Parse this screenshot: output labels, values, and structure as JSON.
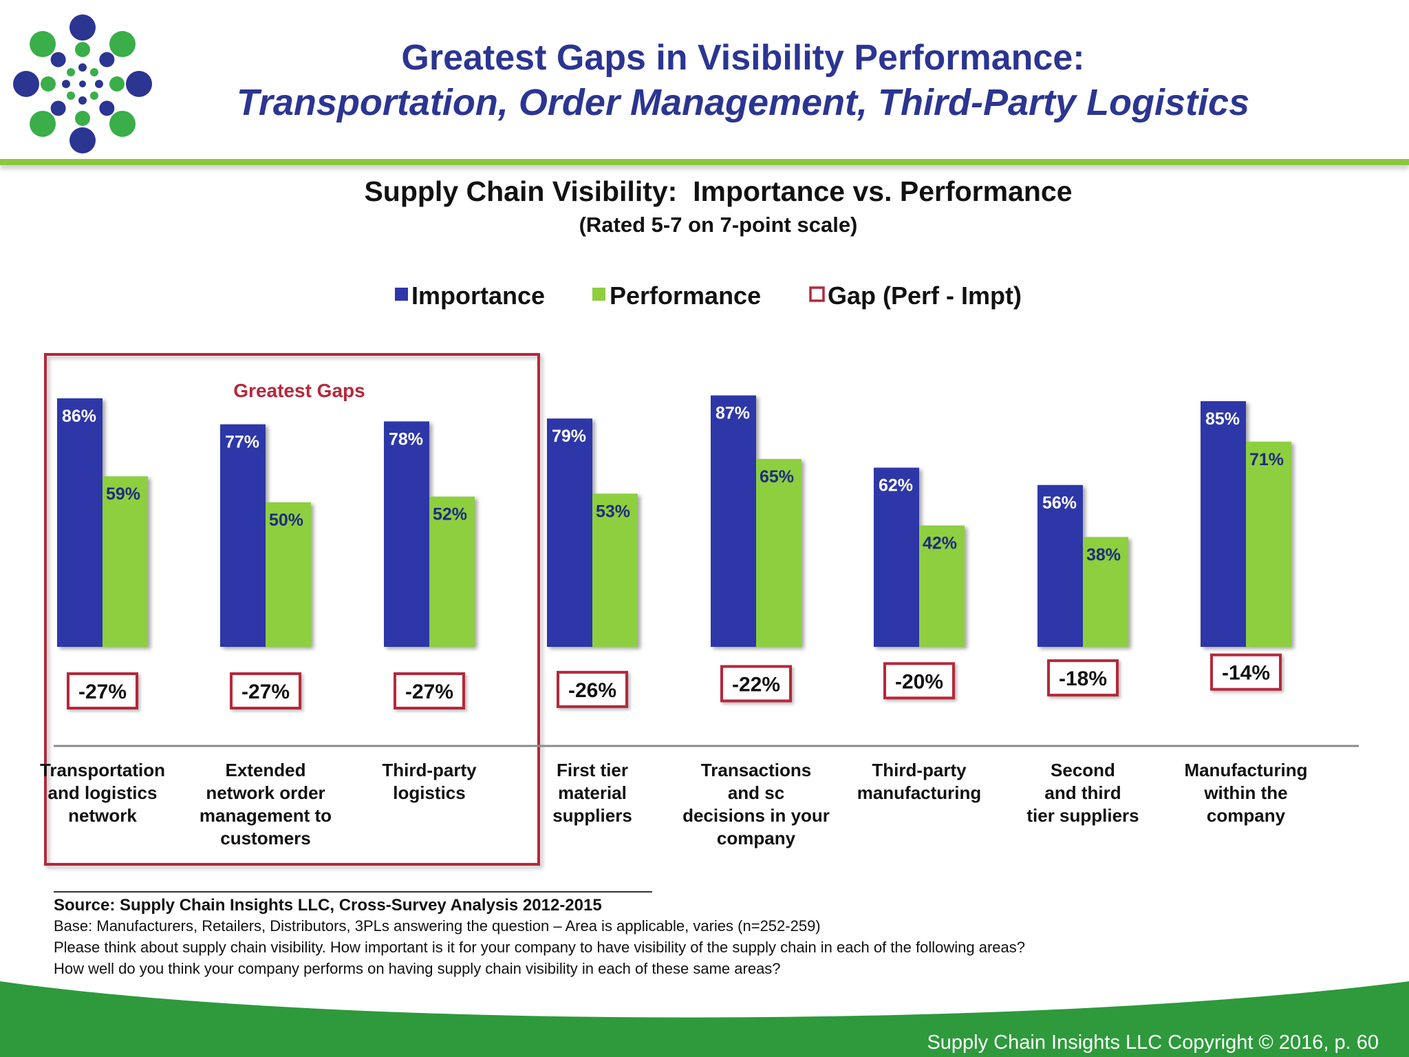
{
  "slide": {
    "title_line1": "Greatest Gaps in Visibility Performance:",
    "title_line2": "Transportation, Order Management, Third-Party Logistics",
    "logo_icon": "dotted-circle-logo-icon"
  },
  "colors": {
    "title": "#2b3592",
    "importance": "#2e37a8",
    "performance": "#8dcf3f",
    "gap_border": "#b5283a",
    "header_rule": "#8cc63f",
    "footer": "#2e9a3c"
  },
  "chart_data": {
    "type": "bar",
    "title": "Supply Chain Visibility:  Importance vs. Performance",
    "subtitle": "(Rated 5-7 on 7-point scale)",
    "legend_position": "top-center",
    "grid": false,
    "ylim": [
      0,
      100
    ],
    "ylabel": "",
    "xlabel": "",
    "categories": [
      [
        "Transportation",
        "and logistics",
        "network"
      ],
      [
        "Extended",
        "network order",
        "management to",
        "customers"
      ],
      [
        "Third-party",
        "logistics"
      ],
      [
        "First tier",
        "material",
        "suppliers"
      ],
      [
        "Transactions",
        "and sc",
        "decisions in your",
        "company"
      ],
      [
        "Third-party",
        "manufacturing"
      ],
      [
        "Second",
        "and third",
        "tier suppliers"
      ],
      [
        "Manufacturing",
        "within the",
        "company"
      ]
    ],
    "series": [
      {
        "name": "Importance",
        "values": [
          86,
          77,
          78,
          79,
          87,
          62,
          56,
          85
        ],
        "labels": [
          "86%",
          "77%",
          "78%",
          "79%",
          "87%",
          "62%",
          "56%",
          "85%"
        ]
      },
      {
        "name": "Performance",
        "values": [
          59,
          50,
          52,
          53,
          65,
          42,
          38,
          71
        ],
        "labels": [
          "59%",
          "50%",
          "52%",
          "53%",
          "65%",
          "42%",
          "38%",
          "71%"
        ]
      },
      {
        "name": "Gap (Perf - Impt)",
        "values": [
          -27,
          -27,
          -27,
          -26,
          -22,
          -20,
          -18,
          -14
        ],
        "labels": [
          "-27%",
          "-27%",
          "-27%",
          "-26%",
          "-22%",
          "-20%",
          "-18%",
          "-14%"
        ]
      }
    ],
    "highlight": {
      "label": "Greatest Gaps",
      "category_indices": [
        0,
        1,
        2
      ]
    }
  },
  "notes": {
    "source": "Source:  Supply Chain Insights LLC, Cross-Survey Analysis 2012-2015",
    "base": "Base:  Manufacturers, Retailers, Distributors, 3PLs answering the question – Area is applicable, varies (n=252-259)",
    "question1": "Please think about supply chain visibility. How important is it for your company to have visibility of the supply chain in each of the following areas?",
    "question2": "How well do you think your company performs on having supply chain visibility in each of these same areas?"
  },
  "footer": {
    "copyright": "Supply Chain Insights LLC Copyright © 2016, p. 60"
  }
}
